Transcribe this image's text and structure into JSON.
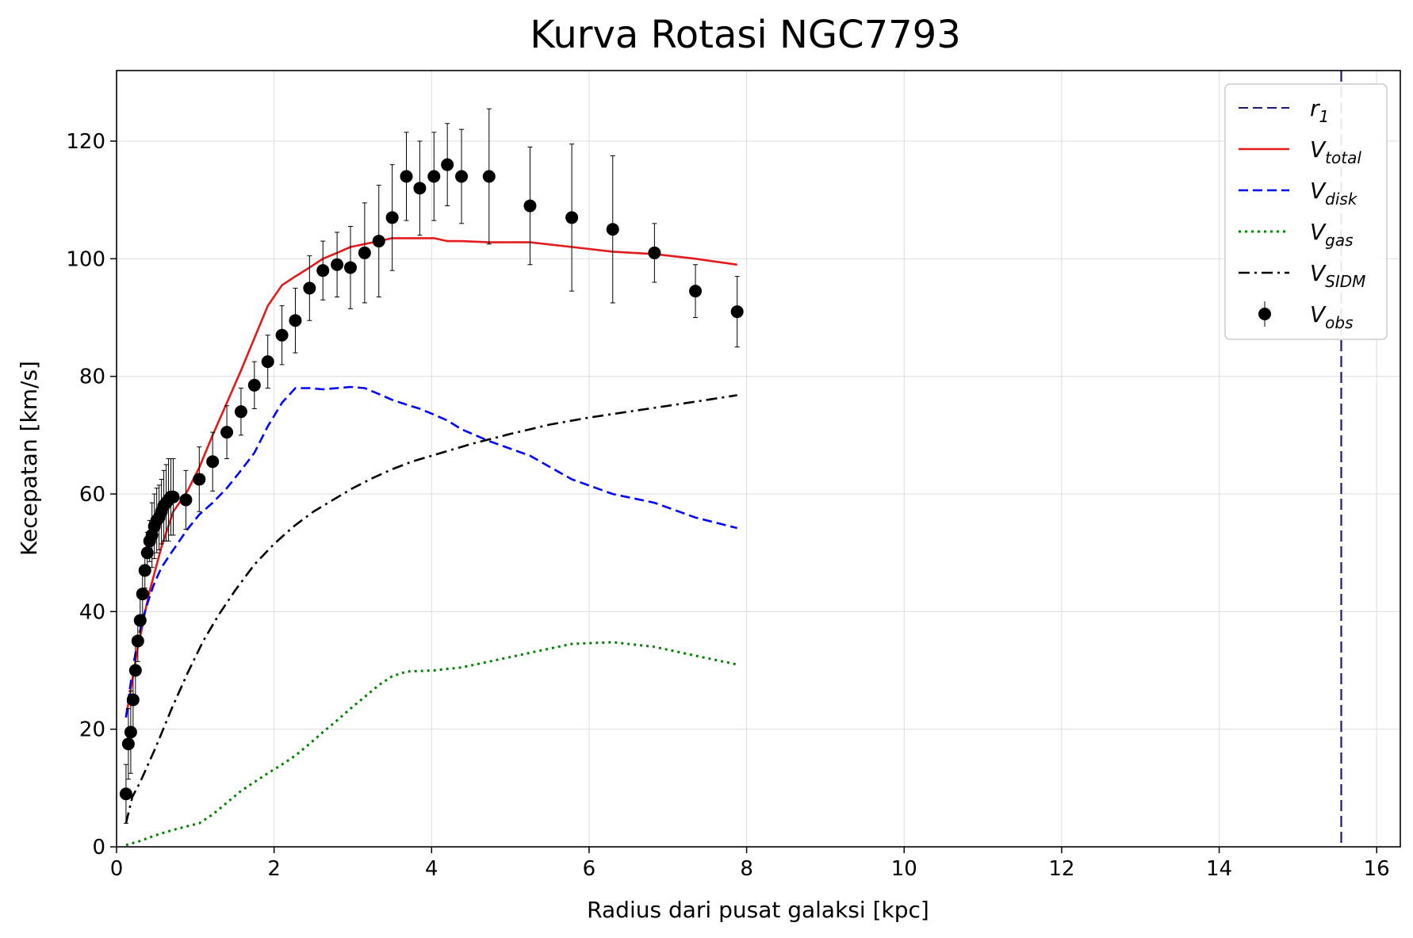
{
  "chart_data": {
    "type": "line",
    "title": "Kurva Rotasi NGC7793",
    "xlabel": "Radius dari pusat galaksi [kpc]",
    "ylabel": "Kecepatan [km/s]",
    "xlim": [
      0,
      16.3
    ],
    "ylim": [
      0,
      132
    ],
    "xticks": [
      0,
      2,
      4,
      6,
      8,
      10,
      12,
      14,
      16
    ],
    "yticks": [
      0,
      20,
      40,
      60,
      80,
      100,
      120
    ],
    "xtick_labels": [
      "0",
      "2",
      "4",
      "6",
      "8",
      "10",
      "12",
      "14",
      "16"
    ],
    "ytick_labels": [
      "0",
      "20",
      "40",
      "60",
      "80",
      "100",
      "120"
    ],
    "grid": true,
    "legend_position": "upper right",
    "colors": {
      "r1": "#191970",
      "total": "#e31a1c",
      "disk": "#0000ff",
      "gas": "#008000",
      "sidm": "#000000",
      "obs": "#000000"
    },
    "vline": {
      "name_main": "r",
      "name_sub": "1",
      "x": 15.55
    },
    "series": [
      {
        "key": "total",
        "name_main": "V",
        "name_sub": "total",
        "style": "solid",
        "x": [
          0.12,
          0.17,
          0.22,
          0.27,
          0.32,
          0.37,
          0.42,
          0.47,
          0.52,
          0.57,
          0.62,
          0.67,
          0.72,
          0.9,
          1.05,
          1.22,
          1.4,
          1.58,
          1.75,
          1.92,
          2.1,
          2.27,
          2.45,
          2.62,
          2.8,
          2.97,
          3.15,
          3.33,
          3.5,
          3.68,
          3.85,
          4.03,
          4.2,
          4.38,
          4.73,
          5.25,
          5.78,
          6.3,
          6.83,
          7.35,
          7.88
        ],
        "y": [
          22.0,
          26.0,
          30.0,
          34.0,
          37.0,
          40.5,
          43.5,
          46.0,
          48.5,
          51.0,
          53.0,
          55.0,
          57.0,
          60.5,
          64.5,
          70.0,
          75.5,
          81.0,
          86.5,
          92.0,
          95.5,
          97.0,
          98.5,
          100.0,
          101.0,
          102.0,
          102.5,
          103.0,
          103.5,
          103.5,
          103.5,
          103.5,
          103.0,
          103.0,
          102.8,
          102.8,
          102.0,
          101.2,
          100.8,
          100.0,
          99.0
        ]
      },
      {
        "key": "disk",
        "name_main": "V",
        "name_sub": "disk",
        "style": "dashed",
        "x": [
          0.12,
          0.17,
          0.22,
          0.27,
          0.32,
          0.37,
          0.42,
          0.47,
          0.52,
          0.57,
          0.62,
          0.67,
          0.72,
          0.9,
          1.05,
          1.22,
          1.4,
          1.58,
          1.75,
          1.92,
          2.1,
          2.27,
          2.45,
          2.62,
          2.8,
          2.97,
          3.15,
          3.33,
          3.5,
          3.68,
          3.85,
          4.03,
          4.2,
          4.38,
          4.73,
          5.25,
          5.78,
          6.3,
          6.83,
          7.35,
          7.88
        ],
        "y": [
          22.0,
          27.0,
          31.5,
          35.0,
          38.0,
          40.5,
          42.5,
          44.5,
          46.0,
          47.5,
          48.5,
          49.5,
          50.5,
          54.0,
          56.5,
          58.5,
          61.0,
          64.0,
          67.0,
          71.5,
          75.5,
          78.0,
          78.0,
          77.8,
          78.0,
          78.2,
          78.0,
          77.0,
          76.0,
          75.2,
          74.5,
          73.5,
          72.5,
          71.0,
          69.0,
          66.5,
          62.5,
          60.0,
          58.5,
          56.0,
          54.2
        ]
      },
      {
        "key": "gas",
        "name_main": "V",
        "name_sub": "gas",
        "style": "dotted",
        "x": [
          0.12,
          0.3,
          0.5,
          0.7,
          0.9,
          1.05,
          1.22,
          1.4,
          1.58,
          1.75,
          1.92,
          2.1,
          2.27,
          2.45,
          2.62,
          2.8,
          2.97,
          3.15,
          3.33,
          3.5,
          3.68,
          4.03,
          4.38,
          4.73,
          5.25,
          5.78,
          6.3,
          6.83,
          7.35,
          7.88
        ],
        "y": [
          0.3,
          1.0,
          2.0,
          2.8,
          3.5,
          4.0,
          5.5,
          7.5,
          9.5,
          11.0,
          12.5,
          14.0,
          15.5,
          17.5,
          19.5,
          21.5,
          23.5,
          25.5,
          27.5,
          29.0,
          29.8,
          30.0,
          30.5,
          31.5,
          33.0,
          34.5,
          34.8,
          34.0,
          32.5,
          31.0
        ]
      },
      {
        "key": "sidm",
        "name_main": "V",
        "name_sub": "SIDM",
        "style": "dashdot",
        "x": [
          0.12,
          0.2,
          0.3,
          0.5,
          0.7,
          0.9,
          1.1,
          1.3,
          1.5,
          1.75,
          2.0,
          2.25,
          2.5,
          2.75,
          3.0,
          3.25,
          3.5,
          3.75,
          4.0,
          4.5,
          5.0,
          5.5,
          6.0,
          6.5,
          7.0,
          7.5,
          7.88
        ],
        "y": [
          4.0,
          8.5,
          11.0,
          17.0,
          23.5,
          29.5,
          35.0,
          39.5,
          43.5,
          48.0,
          51.5,
          54.5,
          57.0,
          59.0,
          61.0,
          62.7,
          64.2,
          65.5,
          66.5,
          68.5,
          70.2,
          71.8,
          73.0,
          74.0,
          75.0,
          76.0,
          76.8
        ]
      }
    ],
    "observations": {
      "key": "obs",
      "name_main": "V",
      "name_sub": "obs",
      "x": [
        0.12,
        0.15,
        0.18,
        0.21,
        0.24,
        0.27,
        0.3,
        0.33,
        0.36,
        0.39,
        0.42,
        0.45,
        0.48,
        0.51,
        0.54,
        0.57,
        0.6,
        0.63,
        0.66,
        0.69,
        0.72,
        0.88,
        1.05,
        1.22,
        1.4,
        1.58,
        1.75,
        1.92,
        2.1,
        2.27,
        2.45,
        2.62,
        2.8,
        2.97,
        3.15,
        3.33,
        3.5,
        3.68,
        3.85,
        4.03,
        4.2,
        4.38,
        4.73,
        5.25,
        5.78,
        6.3,
        6.83,
        7.35,
        7.88
      ],
      "y": [
        9.0,
        17.5,
        19.5,
        25.0,
        30.0,
        35.0,
        38.5,
        43.0,
        47.0,
        50.0,
        52.0,
        53.0,
        54.5,
        55.5,
        56.0,
        57.0,
        58.0,
        58.5,
        59.0,
        59.5,
        59.5,
        59.0,
        62.5,
        65.5,
        70.5,
        74.0,
        78.5,
        82.5,
        87.0,
        89.5,
        95.0,
        98.0,
        99.0,
        98.5,
        101.0,
        103.0,
        107.0,
        114.0,
        112.0,
        114.0,
        116.0,
        114.0,
        114.0,
        109.0,
        107.0,
        105.0,
        101.0,
        94.5,
        91.0
      ],
      "err": [
        5.0,
        6.0,
        7.0,
        5.0,
        4.5,
        3.5,
        4.0,
        3.5,
        3.0,
        3.5,
        3.5,
        5.5,
        5.5,
        5.5,
        5.5,
        5.5,
        6.0,
        6.5,
        7.0,
        6.5,
        6.5,
        5.0,
        5.5,
        5.0,
        4.5,
        4.0,
        4.0,
        4.5,
        5.0,
        5.5,
        5.5,
        5.0,
        5.5,
        7.0,
        8.5,
        9.5,
        9.0,
        7.5,
        8.0,
        7.5,
        7.0,
        8.0,
        11.5,
        10.0,
        12.5,
        12.5,
        5.0,
        4.5,
        6.0
      ]
    }
  }
}
